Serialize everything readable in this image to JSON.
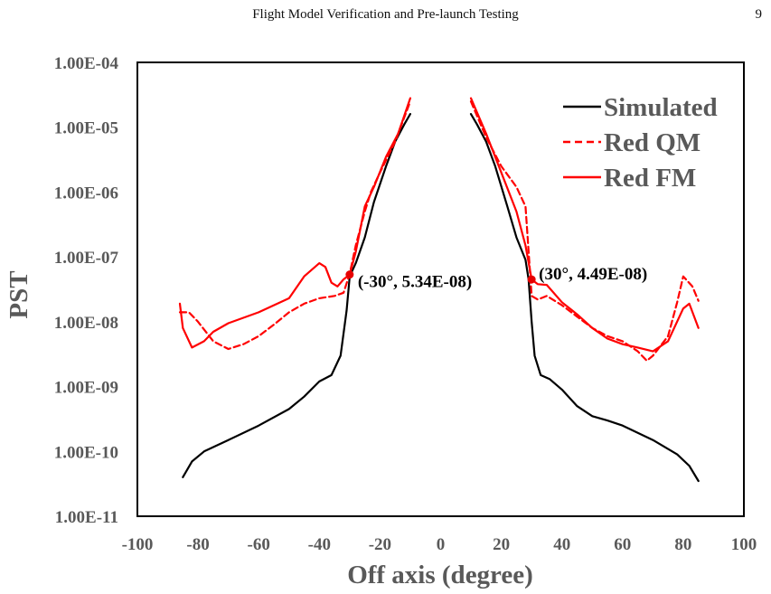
{
  "header": {
    "running_title": "Flight Model Verification and Pre-launch Testing",
    "page_number": "9"
  },
  "chart_data": {
    "type": "line",
    "xlabel": "Off axis (degree)",
    "ylabel": "PST",
    "xlim": [
      -100,
      100
    ],
    "ylim": [
      1e-11,
      0.0001
    ],
    "y_scale": "log",
    "x_ticks": [
      "-100",
      "-80",
      "-60",
      "-40",
      "-20",
      "0",
      "20",
      "40",
      "60",
      "80",
      "100"
    ],
    "y_ticks": [
      "1.00E-04",
      "1.00E-05",
      "1.00E-06",
      "1.00E-07",
      "1.00E-08",
      "1.00E-09",
      "1.00E-10",
      "1.00E-11"
    ],
    "grid": false,
    "legend_position": "top-right",
    "series": [
      {
        "name": "Simulated",
        "color": "#000000",
        "style": "solid",
        "segments": [
          [
            [
              -85,
              4e-11
            ],
            [
              -82,
              7e-11
            ],
            [
              -78,
              1e-10
            ],
            [
              -70,
              1.5e-10
            ],
            [
              -60,
              2.5e-10
            ],
            [
              -50,
              4.5e-10
            ],
            [
              -45,
              7e-10
            ],
            [
              -40,
              1.2e-09
            ],
            [
              -36,
              1.5e-09
            ],
            [
              -33,
              3e-09
            ],
            [
              -31,
              1.5e-08
            ],
            [
              -30,
              5e-08
            ],
            [
              -28,
              8e-08
            ],
            [
              -25,
              2e-07
            ],
            [
              -22,
              7e-07
            ],
            [
              -18,
              2.5e-06
            ],
            [
              -15,
              6e-06
            ],
            [
              -12,
              1.1e-05
            ],
            [
              -10,
              1.6e-05
            ]
          ],
          [
            [
              10,
              1.6e-05
            ],
            [
              12,
              1.1e-05
            ],
            [
              15,
              6e-06
            ],
            [
              18,
              2.5e-06
            ],
            [
              22,
              6e-07
            ],
            [
              25,
              2e-07
            ],
            [
              28,
              9e-08
            ],
            [
              29,
              4.5e-08
            ],
            [
              30,
              1e-08
            ],
            [
              31,
              3e-09
            ],
            [
              33,
              1.5e-09
            ],
            [
              36,
              1.3e-09
            ],
            [
              40,
              9e-10
            ],
            [
              45,
              5e-10
            ],
            [
              50,
              3.5e-10
            ],
            [
              55,
              3e-10
            ],
            [
              60,
              2.5e-10
            ],
            [
              70,
              1.5e-10
            ],
            [
              78,
              9e-11
            ],
            [
              82,
              6e-11
            ],
            [
              85,
              3.5e-11
            ]
          ]
        ]
      },
      {
        "name": "Red QM",
        "color": "#ff0000",
        "style": "dashed",
        "segments": [
          [
            [
              -86,
              1.4e-08
            ],
            [
              -83,
              1.4e-08
            ],
            [
              -80,
              1e-08
            ],
            [
              -75,
              5e-09
            ],
            [
              -70,
              3.8e-09
            ],
            [
              -65,
              4.5e-09
            ],
            [
              -60,
              6e-09
            ],
            [
              -55,
              9e-09
            ],
            [
              -50,
              1.4e-08
            ],
            [
              -45,
              1.9e-08
            ],
            [
              -40,
              2.3e-08
            ],
            [
              -35,
              2.5e-08
            ],
            [
              -32,
              2.8e-08
            ],
            [
              -30,
              5.5e-08
            ],
            [
              -28,
              1.5e-07
            ],
            [
              -25,
              5e-07
            ],
            [
              -23,
              1e-06
            ],
            [
              -20,
              2e-06
            ],
            [
              -15,
              6e-06
            ],
            [
              -10,
              2.5e-05
            ]
          ],
          [
            [
              10,
              2.5e-05
            ],
            [
              15,
              7e-06
            ],
            [
              20,
              2.5e-06
            ],
            [
              25,
              1.2e-06
            ],
            [
              28,
              6e-07
            ],
            [
              30,
              2.5e-08
            ],
            [
              32,
              2.2e-08
            ],
            [
              35,
              2.5e-08
            ],
            [
              40,
              1.8e-08
            ],
            [
              45,
              1.2e-08
            ],
            [
              50,
              8e-09
            ],
            [
              55,
              6e-09
            ],
            [
              60,
              5e-09
            ],
            [
              65,
              3.5e-09
            ],
            [
              68,
              2.5e-09
            ],
            [
              70,
              3e-09
            ],
            [
              75,
              6e-09
            ],
            [
              78,
              2e-08
            ],
            [
              80,
              5e-08
            ],
            [
              83,
              3.5e-08
            ],
            [
              85,
              2.1e-08
            ]
          ]
        ]
      },
      {
        "name": "Red FM",
        "color": "#ff0000",
        "style": "solid",
        "segments": [
          [
            [
              -86,
              1.9e-08
            ],
            [
              -85,
              8e-09
            ],
            [
              -82,
              4e-09
            ],
            [
              -78,
              5e-09
            ],
            [
              -75,
              7e-09
            ],
            [
              -70,
              9.5e-09
            ],
            [
              -60,
              1.4e-08
            ],
            [
              -50,
              2.3e-08
            ],
            [
              -45,
              5e-08
            ],
            [
              -40,
              8e-08
            ],
            [
              -38,
              7e-08
            ],
            [
              -36,
              4e-08
            ],
            [
              -34,
              3.5e-08
            ],
            [
              -32,
              4.5e-08
            ],
            [
              -30,
              5.34e-08
            ],
            [
              -28,
              1.2e-07
            ],
            [
              -25,
              6e-07
            ],
            [
              -22,
              1.2e-06
            ],
            [
              -18,
              3.5e-06
            ],
            [
              -14,
              8e-06
            ],
            [
              -10,
              2.8e-05
            ]
          ],
          [
            [
              10,
              2.8e-05
            ],
            [
              15,
              8e-06
            ],
            [
              20,
              2e-06
            ],
            [
              25,
              5e-07
            ],
            [
              28,
              1.5e-07
            ],
            [
              30,
              4.49e-08
            ],
            [
              32,
              3.8e-08
            ],
            [
              35,
              3.7e-08
            ],
            [
              40,
              2e-08
            ],
            [
              45,
              1.3e-08
            ],
            [
              50,
              8e-09
            ],
            [
              55,
              5.5e-09
            ],
            [
              60,
              4.5e-09
            ],
            [
              65,
              4e-09
            ],
            [
              70,
              3.5e-09
            ],
            [
              75,
              5e-09
            ],
            [
              80,
              1.6e-08
            ],
            [
              82,
              1.9e-08
            ],
            [
              85,
              8e-09
            ]
          ]
        ]
      }
    ],
    "annotations": [
      {
        "text": "(-30°, 5.34E-08)",
        "x": -30,
        "y": 5.34e-08
      },
      {
        "text": "(30°, 4.49E-08)",
        "x": 30,
        "y": 4.49e-08
      }
    ]
  }
}
